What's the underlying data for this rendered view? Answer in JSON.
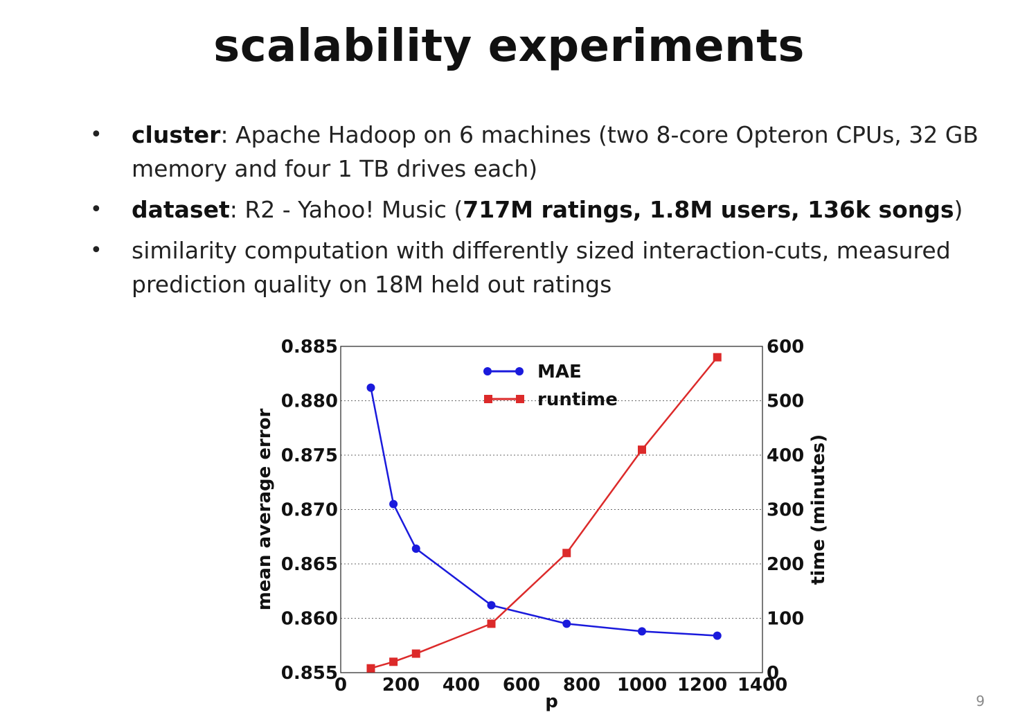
{
  "slide": {
    "title": "scalability experiments",
    "page_number": "9",
    "bullets": [
      {
        "term": "cluster",
        "text": ": Apache Hadoop on 6 machines (two 8-core Opteron CPUs, 32 GB memory and four 1 TB drives each)"
      },
      {
        "term": "dataset",
        "text_before": ": R2 - Yahoo! Music (",
        "bold_text": "717M ratings, 1.8M users, 136k songs",
        "text_after": ")"
      },
      {
        "text": "similarity computation with differently sized interaction-cuts, measured prediction quality on 18M held out ratings"
      }
    ]
  },
  "chart_data": {
    "type": "line",
    "xlabel": "p",
    "ylabel": "mean average error",
    "y2label": "time (minutes)",
    "xlim": [
      0,
      1400
    ],
    "ylim": [
      0.855,
      0.885
    ],
    "y2lim": [
      0,
      600
    ],
    "xticks": [
      "0",
      "200",
      "400",
      "600",
      "800",
      "1000",
      "1200",
      "1400"
    ],
    "yticks": [
      "0.855",
      "0.860",
      "0.865",
      "0.870",
      "0.875",
      "0.880",
      "0.885"
    ],
    "y2ticks": [
      "0",
      "100",
      "200",
      "300",
      "400",
      "500",
      "600"
    ],
    "grid": true,
    "legend_position": "top-center",
    "series": [
      {
        "name": "MAE",
        "axis": "left",
        "color": "#1a1adc",
        "marker": "circle",
        "x": [
          100,
          175,
          250,
          500,
          750,
          1000,
          1250
        ],
        "y": [
          0.8812,
          0.8705,
          0.8664,
          0.8612,
          0.8595,
          0.8588,
          0.8584
        ]
      },
      {
        "name": "runtime",
        "axis": "right",
        "color": "#dc2a2a",
        "marker": "square",
        "x": [
          100,
          175,
          250,
          500,
          750,
          1000,
          1250
        ],
        "y": [
          8,
          20,
          35,
          90,
          220,
          410,
          580
        ]
      }
    ]
  }
}
